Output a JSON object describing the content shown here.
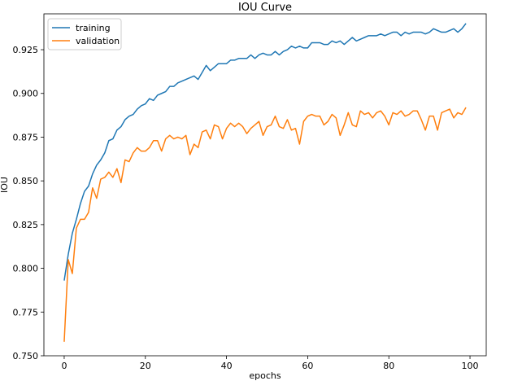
{
  "chart_data": {
    "type": "line",
    "title": "IOU Curve",
    "xlabel": "epochs",
    "ylabel": "IOU",
    "xlim": [
      -5,
      104
    ],
    "ylim": [
      0.75,
      0.9455
    ],
    "xticks": [
      0,
      20,
      40,
      60,
      80,
      100
    ],
    "yticks": [
      0.75,
      0.775,
      0.8,
      0.825,
      0.85,
      0.875,
      0.9,
      0.925
    ],
    "xtick_labels": [
      "0",
      "20",
      "40",
      "60",
      "80",
      "100"
    ],
    "ytick_labels": [
      "0.750",
      "0.775",
      "0.800",
      "0.825",
      "0.850",
      "0.875",
      "0.900",
      "0.925"
    ],
    "grid": false,
    "legend_position": "upper-left",
    "x": [
      0,
      1,
      2,
      3,
      4,
      5,
      6,
      7,
      8,
      9,
      10,
      11,
      12,
      13,
      14,
      15,
      16,
      17,
      18,
      19,
      20,
      21,
      22,
      23,
      24,
      25,
      26,
      27,
      28,
      29,
      30,
      31,
      32,
      33,
      34,
      35,
      36,
      37,
      38,
      39,
      40,
      41,
      42,
      43,
      44,
      45,
      46,
      47,
      48,
      49,
      50,
      51,
      52,
      53,
      54,
      55,
      56,
      57,
      58,
      59,
      60,
      61,
      62,
      63,
      64,
      65,
      66,
      67,
      68,
      69,
      70,
      71,
      72,
      73,
      74,
      75,
      76,
      77,
      78,
      79,
      80,
      81,
      82,
      83,
      84,
      85,
      86,
      87,
      88,
      89,
      90,
      91,
      92,
      93,
      94,
      95,
      96,
      97,
      98,
      99
    ],
    "series": [
      {
        "name": "training",
        "color": "#1f77b4",
        "values": [
          0.793,
          0.808,
          0.82,
          0.828,
          0.837,
          0.844,
          0.847,
          0.854,
          0.859,
          0.862,
          0.866,
          0.873,
          0.874,
          0.879,
          0.881,
          0.885,
          0.887,
          0.888,
          0.891,
          0.893,
          0.894,
          0.897,
          0.896,
          0.899,
          0.9,
          0.901,
          0.904,
          0.904,
          0.906,
          0.907,
          0.908,
          0.909,
          0.91,
          0.908,
          0.912,
          0.916,
          0.913,
          0.915,
          0.917,
          0.917,
          0.917,
          0.919,
          0.919,
          0.92,
          0.92,
          0.92,
          0.922,
          0.92,
          0.922,
          0.923,
          0.922,
          0.922,
          0.924,
          0.922,
          0.924,
          0.925,
          0.927,
          0.926,
          0.927,
          0.926,
          0.926,
          0.929,
          0.929,
          0.929,
          0.928,
          0.928,
          0.93,
          0.929,
          0.93,
          0.928,
          0.93,
          0.932,
          0.93,
          0.931,
          0.932,
          0.933,
          0.933,
          0.933,
          0.934,
          0.933,
          0.934,
          0.935,
          0.935,
          0.933,
          0.935,
          0.934,
          0.935,
          0.935,
          0.935,
          0.934,
          0.935,
          0.937,
          0.936,
          0.935,
          0.935,
          0.936,
          0.937,
          0.935,
          0.937,
          0.94
        ]
      },
      {
        "name": "validation",
        "color": "#ff7f0e",
        "values": [
          0.758,
          0.805,
          0.797,
          0.823,
          0.828,
          0.828,
          0.832,
          0.846,
          0.84,
          0.851,
          0.852,
          0.855,
          0.852,
          0.857,
          0.849,
          0.862,
          0.861,
          0.866,
          0.869,
          0.867,
          0.867,
          0.869,
          0.873,
          0.873,
          0.867,
          0.874,
          0.876,
          0.874,
          0.875,
          0.874,
          0.876,
          0.865,
          0.871,
          0.869,
          0.878,
          0.879,
          0.874,
          0.882,
          0.881,
          0.874,
          0.88,
          0.883,
          0.881,
          0.883,
          0.881,
          0.877,
          0.88,
          0.882,
          0.884,
          0.876,
          0.881,
          0.882,
          0.887,
          0.881,
          0.88,
          0.885,
          0.879,
          0.88,
          0.871,
          0.884,
          0.887,
          0.888,
          0.887,
          0.887,
          0.882,
          0.884,
          0.888,
          0.886,
          0.876,
          0.882,
          0.889,
          0.882,
          0.881,
          0.89,
          0.888,
          0.889,
          0.886,
          0.889,
          0.89,
          0.887,
          0.882,
          0.889,
          0.888,
          0.89,
          0.887,
          0.888,
          0.89,
          0.89,
          0.885,
          0.879,
          0.887,
          0.887,
          0.879,
          0.889,
          0.89,
          0.891,
          0.886,
          0.889,
          0.888,
          0.892
        ]
      }
    ]
  }
}
